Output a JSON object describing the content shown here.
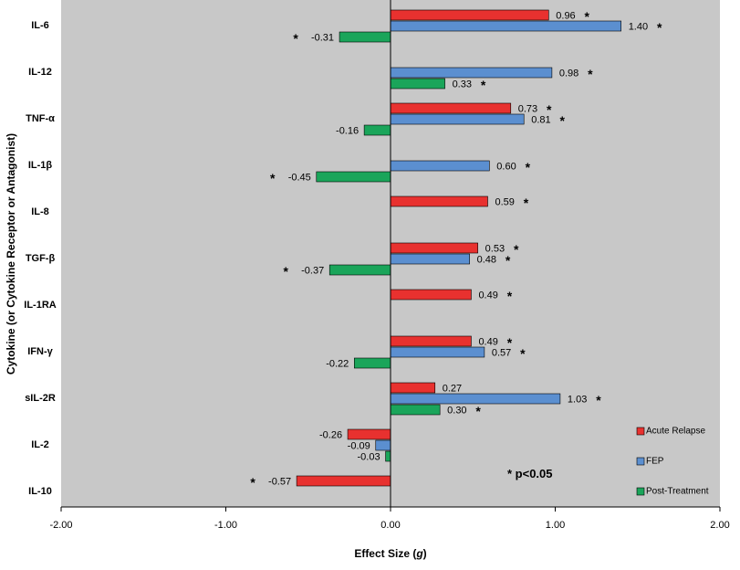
{
  "chart_data": {
    "type": "bar",
    "orientation": "horizontal",
    "title": "",
    "xlabel": "Effect Size (",
    "xlabel_italic": "g",
    "xlabel_suffix": ")",
    "ylabel": "Cytokine (or Cytokine Receptor or Antagonist)",
    "xlim": [
      -2.0,
      2.0
    ],
    "xticks": [
      -2.0,
      -1.0,
      0.0,
      1.0,
      2.0
    ],
    "xtick_labels": [
      "-2.00",
      "-1.00",
      "0.00",
      "1.00",
      "2.00"
    ],
    "categories": [
      "IL-6",
      "IL-12",
      "TNF-α",
      "IL-1β",
      "IL-8",
      "TGF-β",
      "IL-1RA",
      "IFN-γ",
      "sIL-2R",
      "IL-2",
      "IL-10"
    ],
    "series": [
      {
        "name": "Acute Relapse",
        "color": "#e8312f",
        "values": [
          0.96,
          null,
          0.73,
          null,
          0.59,
          0.53,
          0.49,
          0.49,
          0.27,
          -0.26,
          -0.57
        ],
        "labels": [
          "0.96",
          null,
          "0.73",
          null,
          "0.59",
          "0.53",
          "0.49",
          "0.49",
          "0.27",
          "-0.26",
          "-0.57"
        ],
        "significant": [
          true,
          false,
          true,
          false,
          true,
          true,
          true,
          true,
          false,
          false,
          true
        ]
      },
      {
        "name": "FEP",
        "color": "#5b8fd0",
        "values": [
          1.4,
          0.98,
          0.81,
          0.6,
          null,
          0.48,
          null,
          0.57,
          1.03,
          -0.09,
          null
        ],
        "labels": [
          "1.40",
          "0.98",
          "0.81",
          "0.60",
          null,
          "0.48",
          null,
          "0.57",
          "1.03",
          "-0.09",
          null
        ],
        "significant": [
          true,
          true,
          true,
          true,
          false,
          true,
          false,
          true,
          true,
          false,
          false
        ]
      },
      {
        "name": "Post-Treatment",
        "color": "#1aa55a",
        "values": [
          -0.31,
          0.33,
          -0.16,
          -0.45,
          null,
          -0.37,
          null,
          -0.22,
          0.3,
          -0.03,
          null
        ],
        "labels": [
          "-0.31",
          "0.33",
          "-0.16",
          "-0.45",
          null,
          "-0.37",
          null,
          "-0.22",
          "0.30",
          "-0.03",
          null
        ],
        "significant": [
          true,
          true,
          false,
          true,
          false,
          true,
          false,
          false,
          true,
          false,
          false
        ]
      }
    ],
    "legend": [
      "Acute Relapse",
      "FEP",
      "Post-Treatment"
    ],
    "legend_position": "bottom-right",
    "annotation": "* p<0.05",
    "significance_marker": "*",
    "plot_background": "#c8c8c8",
    "grid": false
  }
}
